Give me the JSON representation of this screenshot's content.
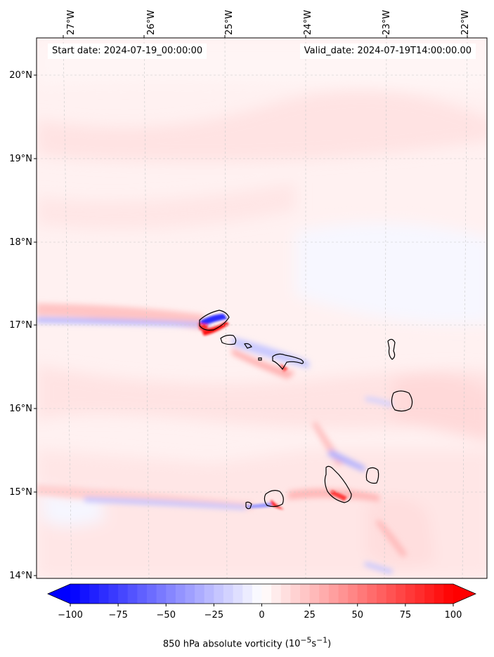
{
  "map": {
    "projection": "lat-lon",
    "lon_range": [
      -27.35,
      -21.7
    ],
    "lat_range": [
      13.95,
      20.45
    ],
    "lon_ticks": [
      -27,
      -26,
      -25,
      -24,
      -23,
      -22
    ],
    "lat_ticks": [
      14,
      15,
      16,
      17,
      18,
      19,
      20
    ],
    "lon_tick_labels": [
      "27°W",
      "26°W",
      "25°W",
      "24°W",
      "23°W",
      "22°W"
    ],
    "lat_tick_labels": [
      "14°N",
      "15°N",
      "16°N",
      "17°N",
      "18°N",
      "19°N",
      "20°N"
    ],
    "gridlines": true,
    "start_label": "Start date: 2024-07-19_00:00:00",
    "valid_label": "Valid_date: 2024-07-19T14:00:00.00",
    "field": "850 hPa absolute vorticity",
    "units_html": "(10<sup>−5</sup>s<sup>−1</sup>)"
  },
  "chart_data": {
    "type": "heatmap",
    "title": "",
    "variable": "850 hPa absolute vorticity",
    "units": "10^-5 s^-1",
    "colormap": "bwr",
    "vmin": -100,
    "vmax": 100,
    "extend": "both",
    "colorbar_ticks": [
      -100,
      -75,
      -50,
      -25,
      0,
      25,
      50,
      75,
      100
    ],
    "colorbar_tick_labels": [
      "−100",
      "−75",
      "−50",
      "−25",
      "0",
      "25",
      "50",
      "75",
      "100"
    ],
    "colorbar_label": "850 hPa absolute vorticity (10−5s−1)",
    "background_value": 8,
    "features": [
      {
        "name": "westward wake band",
        "lon": [
          -27.3,
          -25.2
        ],
        "lat": [
          17.0,
          17.15
        ],
        "value": 15
      },
      {
        "name": "negative wake core",
        "lon": [
          -27.3,
          -25.3
        ],
        "lat": [
          17.03,
          17.08
        ],
        "value": -20
      },
      {
        "name": "island dipole positive",
        "lon": -25.2,
        "lat": 16.97,
        "value": 100
      },
      {
        "name": "island dipole negative",
        "lon": -25.05,
        "lat": 17.1,
        "value": -80
      },
      {
        "name": "southern wake band",
        "lon": [
          -27.1,
          -24.4
        ],
        "lat": [
          14.8,
          14.95
        ],
        "value": -25
      },
      {
        "name": "southern positive core",
        "lon": -24.3,
        "lat": 14.82,
        "value": 100
      },
      {
        "name": "Santiago lee positive",
        "lon": -23.6,
        "lat": 14.98,
        "value": 70
      },
      {
        "name": "Sao Nicolau lee positive",
        "lon": -24.3,
        "lat": 16.55,
        "value": 60
      }
    ]
  },
  "islands": [
    {
      "name": "Santo Antao",
      "lon": -25.15,
      "lat": 17.05
    },
    {
      "name": "Sao Vicente",
      "lon": -24.95,
      "lat": 16.83
    },
    {
      "name": "Santa Luzia",
      "lon": -24.72,
      "lat": 16.76
    },
    {
      "name": "Sao Nicolau",
      "lon": -24.25,
      "lat": 16.6
    },
    {
      "name": "Sal",
      "lon": -22.93,
      "lat": 16.7
    },
    {
      "name": "Boa Vista",
      "lon": -22.85,
      "lat": 16.08
    },
    {
      "name": "Maio",
      "lon": -23.15,
      "lat": 15.2
    },
    {
      "name": "Santiago",
      "lon": -23.55,
      "lat": 15.07
    },
    {
      "name": "Fogo",
      "lon": -24.37,
      "lat": 14.93
    },
    {
      "name": "Brava",
      "lon": -24.7,
      "lat": 14.85
    }
  ]
}
